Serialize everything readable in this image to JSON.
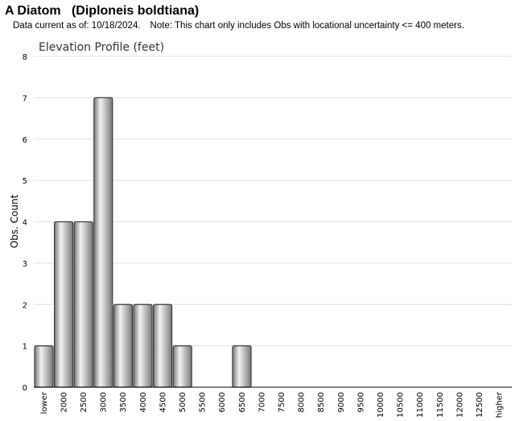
{
  "header": {
    "title": "A Diatom   (Diploneis boldtiana)",
    "data_current": "Data current as of: 10/18/2024.",
    "note": "Note: This chart only includes Obs with locational uncertainty <= 400 meters."
  },
  "chart_data": {
    "type": "bar",
    "title": "Elevation Profile (feet)",
    "xlabel": "",
    "ylabel": "Obs. Count",
    "ylim": [
      0,
      8
    ],
    "yticks": [
      "0",
      "1",
      "2",
      "3",
      "4",
      "5",
      "6",
      "7",
      "8"
    ],
    "categories": [
      "lower",
      "2000",
      "2500",
      "3000",
      "3500",
      "4000",
      "4500",
      "5000",
      "5500",
      "6000",
      "6500",
      "7000",
      "7500",
      "8000",
      "8500",
      "9000",
      "9500",
      "10000",
      "10500",
      "11000",
      "11500",
      "12000",
      "12500",
      "higher"
    ],
    "values": [
      1,
      4,
      4,
      7,
      2,
      2,
      2,
      1,
      0,
      0,
      1,
      0,
      0,
      0,
      0,
      0,
      0,
      0,
      0,
      0,
      0,
      0,
      0,
      0
    ],
    "grid": true,
    "colors": {
      "bar_light": "#f2f2f2",
      "bar_dark": "#7a7a7a",
      "bar_edge": "#3a3a3a",
      "grid": "#e0e0e0"
    }
  }
}
